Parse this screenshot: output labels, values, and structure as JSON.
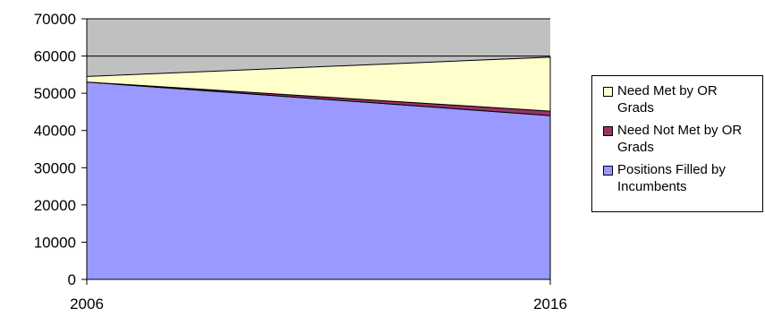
{
  "chart_data": {
    "type": "area",
    "stacked": true,
    "x": [
      "2006",
      "2016"
    ],
    "ylim": [
      0,
      70000
    ],
    "yticks": [
      0,
      10000,
      20000,
      30000,
      40000,
      50000,
      60000,
      70000
    ],
    "grid": true,
    "legend_position": "right",
    "series": [
      {
        "name": "Positions Filled by Incumbents",
        "values": [
          53000,
          44000
        ],
        "color": "#9999ff"
      },
      {
        "name": "Need Not Met by OR Grads",
        "values": [
          0,
          1200
        ],
        "color": "#993366"
      },
      {
        "name": "Need Met by OR Grads",
        "values": [
          1500,
          14500
        ],
        "color": "#ffffcc"
      }
    ],
    "legend": [
      {
        "label": "Need Met by OR Grads",
        "color": "#ffffcc"
      },
      {
        "label": "Need Not Met by OR Grads",
        "color": "#993366"
      },
      {
        "label": "Positions Filled by Incumbents",
        "color": "#9999ff"
      }
    ],
    "plot_background": "#c0c0c0"
  }
}
